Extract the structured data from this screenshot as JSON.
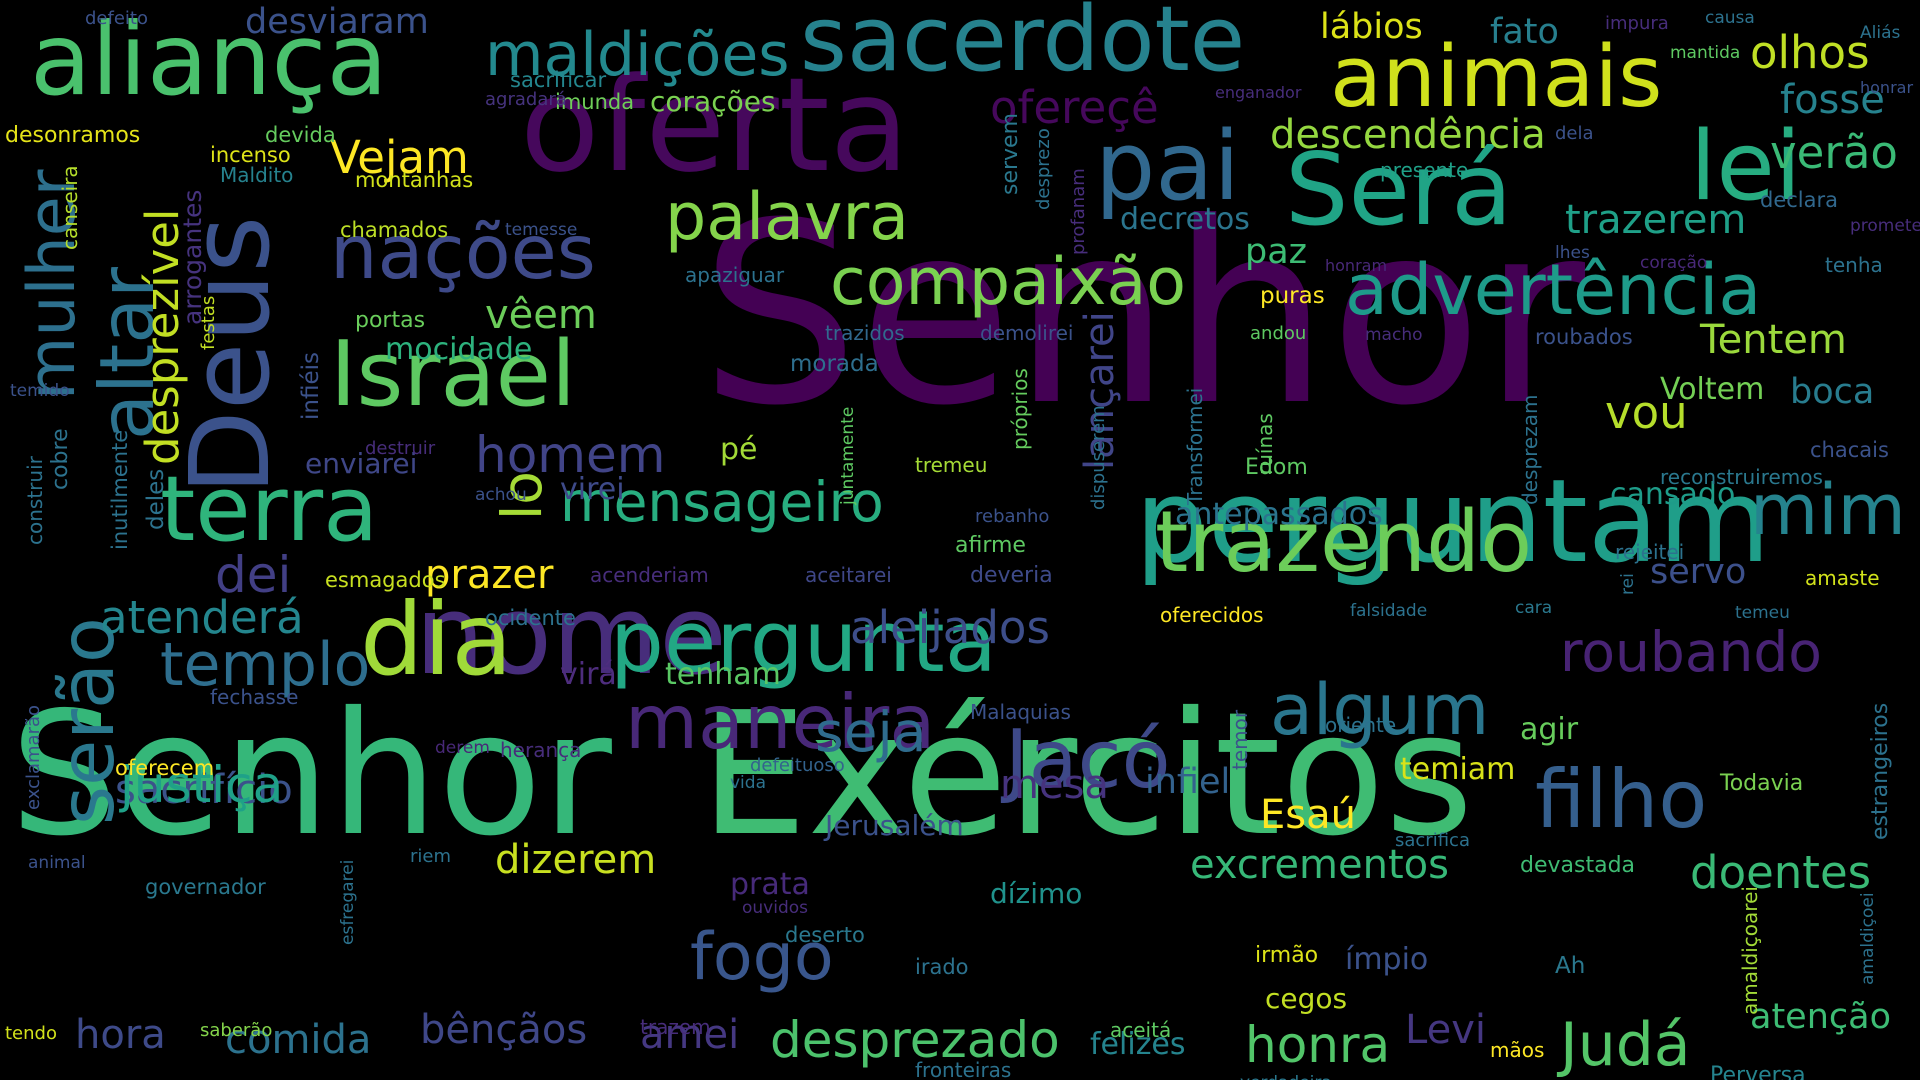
{
  "words": [
    {
      "text": "Senhor",
      "color": "#440154",
      "vertical": false
    },
    {
      "text": "Senhor",
      "color": "#35b779",
      "vertical": false
    },
    {
      "text": "Exércitos",
      "color": "#3fbc73",
      "vertical": false
    },
    {
      "text": "oferta",
      "color": "#46085c",
      "vertical": false
    },
    {
      "text": "nome",
      "color": "#472d7b",
      "vertical": false
    },
    {
      "text": "Deus",
      "color": "#3b528b",
      "vertical": true
    },
    {
      "text": "perguntam",
      "color": "#1f9e89",
      "vertical": false
    },
    {
      "text": "aliança",
      "color": "#4ac16d",
      "vertical": false
    },
    {
      "text": "sacerdote",
      "color": "#26828e",
      "vertical": false
    },
    {
      "text": "animais",
      "color": "#d0e11c",
      "vertical": false
    },
    {
      "text": "pai",
      "color": "#31688e",
      "vertical": false
    },
    {
      "text": "Será",
      "color": "#20a486",
      "vertical": false
    },
    {
      "text": "lei",
      "color": "#27ad81",
      "vertical": false
    },
    {
      "text": "dia",
      "color": "#a0da39",
      "vertical": false
    },
    {
      "text": "Israel",
      "color": "#5ec962",
      "vertical": false
    },
    {
      "text": "terra",
      "color": "#2fb47c",
      "vertical": false
    },
    {
      "text": "trazendo",
      "color": "#6ccd5a",
      "vertical": false
    },
    {
      "text": "pergunta",
      "color": "#22a884",
      "vertical": false
    },
    {
      "text": "filho",
      "color": "#355f8d",
      "vertical": false
    },
    {
      "text": "Jacó",
      "color": "#3e4989",
      "vertical": false
    },
    {
      "text": "maneira",
      "color": "#482878",
      "vertical": false
    },
    {
      "text": "nações",
      "color": "#3e4a89",
      "vertical": false
    },
    {
      "text": "palavra",
      "color": "#84d44b",
      "vertical": false
    },
    {
      "text": "altar",
      "color": "#2c728e",
      "vertical": true
    },
    {
      "text": "serão",
      "color": "#2a788e",
      "vertical": true
    },
    {
      "text": "mulher",
      "color": "#2d708e",
      "vertical": true
    },
    {
      "text": "desprezível",
      "color": "#c2df23",
      "vertical": true
    },
    {
      "text": "compaixão",
      "color": "#7ad151",
      "vertical": false
    },
    {
      "text": "advertência",
      "color": "#1e9b8a",
      "vertical": false
    },
    {
      "text": "maldições",
      "color": "#23898e",
      "vertical": false
    },
    {
      "text": "mim",
      "color": "#25838e",
      "vertical": false
    },
    {
      "text": "homem",
      "color": "#414487",
      "vertical": false
    },
    {
      "text": "vou",
      "color": "#b5de2b",
      "vertical": false
    },
    {
      "text": "Vejam",
      "color": "#fde725",
      "vertical": false
    },
    {
      "text": "templo",
      "color": "#2e6e8e",
      "vertical": false
    },
    {
      "text": "algum",
      "color": "#2a768e",
      "vertical": false
    },
    {
      "text": "roubando",
      "color": "#482374",
      "vertical": false
    },
    {
      "text": "seja",
      "color": "#2f6c8e",
      "vertical": false
    },
    {
      "text": "mensageiro",
      "color": "#28ae80",
      "vertical": false
    },
    {
      "text": "lo",
      "color": "#a5db36",
      "vertical": true
    },
    {
      "text": "lançarei",
      "color": "#404588",
      "vertical": true
    },
    {
      "text": "dei",
      "color": "#423f85",
      "vertical": false
    },
    {
      "text": "atenderá",
      "color": "#24868e",
      "vertical": false
    },
    {
      "text": "aleijados",
      "color": "#3d4e8a",
      "vertical": false
    },
    {
      "text": "prazer",
      "color": "#fde725",
      "vertical": false
    },
    {
      "text": "sacrifício",
      "color": "#3b528b",
      "vertical": false
    },
    {
      "text": "justiça",
      "color": "#1fa188",
      "vertical": false
    },
    {
      "text": "Esaú",
      "color": "#fde725",
      "vertical": false
    },
    {
      "text": "mesa",
      "color": "#46337e",
      "vertical": false
    },
    {
      "text": "infiel",
      "color": "#33628d",
      "vertical": false
    },
    {
      "text": "temiam",
      "color": "#d8e219",
      "vertical": false
    },
    {
      "text": "Jerusalém",
      "color": "#3b528b",
      "vertical": false
    },
    {
      "text": "dizerem",
      "color": "#c8e020",
      "vertical": false
    },
    {
      "text": "excrementos",
      "color": "#37b878",
      "vertical": false
    },
    {
      "text": "doentes",
      "color": "#3aba76",
      "vertical": false
    },
    {
      "text": "fogo",
      "color": "#39568c",
      "vertical": false
    },
    {
      "text": "desprezado",
      "color": "#4cc26c",
      "vertical": false
    },
    {
      "text": "honra",
      "color": "#52c569",
      "vertical": false
    },
    {
      "text": "Judá",
      "color": "#54c568",
      "vertical": false
    },
    {
      "text": "Levi",
      "color": "#453781",
      "vertical": false
    },
    {
      "text": "hora",
      "color": "#3e4a89",
      "vertical": false
    },
    {
      "text": "comida",
      "color": "#2c728e",
      "vertical": false
    },
    {
      "text": "bênçãos",
      "color": "#3f4788",
      "vertical": false
    },
    {
      "text": "amei",
      "color": "#453882",
      "vertical": false
    },
    {
      "text": "felizes",
      "color": "#25848e",
      "vertical": false
    },
    {
      "text": "atenção",
      "color": "#3dbc74",
      "vertical": false
    },
    {
      "text": "olhos",
      "color": "#c0df25",
      "vertical": false
    },
    {
      "text": "fosse",
      "color": "#26828e",
      "vertical": false
    },
    {
      "text": "verão",
      "color": "#3aba76",
      "vertical": false
    },
    {
      "text": "lábios",
      "color": "#dde318",
      "vertical": false
    },
    {
      "text": "fato",
      "color": "#277f8e",
      "vertical": false
    },
    {
      "text": "descendência",
      "color": "#95d840",
      "vertical": false
    },
    {
      "text": "trazerem",
      "color": "#1fa088",
      "vertical": false
    },
    {
      "text": "Tentem",
      "color": "#9bd93c",
      "vertical": false
    },
    {
      "text": "decretos",
      "color": "#2b758e",
      "vertical": false
    },
    {
      "text": "ofereçê",
      "color": "#46085c",
      "vertical": false
    },
    {
      "text": "desviaram",
      "color": "#3b528b",
      "vertical": false
    },
    {
      "text": "boca",
      "color": "#287c8e",
      "vertical": false
    },
    {
      "text": "Voltem",
      "color": "#74d055",
      "vertical": false
    },
    {
      "text": "servo",
      "color": "#3c508b",
      "vertical": false
    },
    {
      "text": "cansado",
      "color": "#1e9c89",
      "vertical": false
    },
    {
      "text": "antepassados",
      "color": "#2b748e",
      "vertical": false
    },
    {
      "text": "vêem",
      "color": "#6ccd5a",
      "vertical": false
    },
    {
      "text": "paz",
      "color": "#3dbc74",
      "vertical": false
    },
    {
      "text": "puras",
      "color": "#fde725",
      "vertical": false
    },
    {
      "text": "mocidade",
      "color": "#2db27d",
      "vertical": false
    },
    {
      "text": "enviarei",
      "color": "#3f4788",
      "vertical": false
    },
    {
      "text": "virei",
      "color": "#3e4a89",
      "vertical": false
    },
    {
      "text": "tenham",
      "color": "#5ac864",
      "vertical": false
    },
    {
      "text": "virá",
      "color": "#4e2d7e",
      "vertical": false
    },
    {
      "text": "agir",
      "color": "#67cc5c",
      "vertical": false
    },
    {
      "text": "dízimo",
      "color": "#20928c",
      "vertical": false
    },
    {
      "text": "prata",
      "color": "#472a7a",
      "vertical": false
    },
    {
      "text": "ímpio",
      "color": "#3b528b",
      "vertical": false
    },
    {
      "text": "cegos",
      "color": "#c2df23",
      "vertical": false
    },
    {
      "text": "irmão",
      "color": "#dde318",
      "vertical": false
    },
    {
      "text": "Ah",
      "color": "#2a788e",
      "vertical": false
    },
    {
      "text": "mãos",
      "color": "#fde725",
      "vertical": false
    },
    {
      "text": "Perversa",
      "color": "#25848e",
      "vertical": false
    },
    {
      "text": "Todavia",
      "color": "#7ad151",
      "vertical": false
    },
    {
      "text": "devastada",
      "color": "#3fbc73",
      "vertical": false
    },
    {
      "text": "sacrifica",
      "color": "#2c728e",
      "vertical": false
    },
    {
      "text": "pé",
      "color": "#a2da37",
      "vertical": false
    },
    {
      "text": "morada",
      "color": "#2e6f8e",
      "vertical": false
    },
    {
      "text": "portas",
      "color": "#69cd5b",
      "vertical": false
    },
    {
      "text": "chamados",
      "color": "#bddf26",
      "vertical": false
    },
    {
      "text": "montanhas",
      "color": "#d2e21b",
      "vertical": false
    },
    {
      "text": "incenso",
      "color": "#dde318",
      "vertical": false
    },
    {
      "text": "devida",
      "color": "#65cb5e",
      "vertical": false
    },
    {
      "text": "corações",
      "color": "#7ad151",
      "vertical": false
    },
    {
      "text": "imunda",
      "color": "#6ece58",
      "vertical": false
    },
    {
      "text": "sacrificar",
      "color": "#24868e",
      "vertical": false
    },
    {
      "text": "agradará",
      "color": "#46337e",
      "vertical": false
    },
    {
      "text": "desonramos",
      "color": "#e5e419",
      "vertical": false
    },
    {
      "text": "Maldito",
      "color": "#26828e",
      "vertical": false
    },
    {
      "text": "defeito",
      "color": "#3b528b",
      "vertical": false
    },
    {
      "text": "esmagados",
      "color": "#c8e020",
      "vertical": false
    },
    {
      "text": "acenderiam",
      "color": "#472d7b",
      "vertical": false
    },
    {
      "text": "aceitarei",
      "color": "#3f4788",
      "vertical": false
    },
    {
      "text": "deveria",
      "color": "#3e4a89",
      "vertical": false
    },
    {
      "text": "afirme",
      "color": "#5ec962",
      "vertical": false
    },
    {
      "text": "tremeu",
      "color": "#a5db36",
      "vertical": false
    },
    {
      "text": "ocidente",
      "color": "#2c728e",
      "vertical": false
    },
    {
      "text": "fechasse",
      "color": "#3b528b",
      "vertical": false
    },
    {
      "text": "oferecem",
      "color": "#fde725",
      "vertical": false
    },
    {
      "text": "herança",
      "color": "#472d7b",
      "vertical": false
    },
    {
      "text": "derem",
      "color": "#482878",
      "vertical": false
    },
    {
      "text": "vida",
      "color": "#2c728e",
      "vertical": false
    },
    {
      "text": "defeituoso",
      "color": "#33638d",
      "vertical": false
    },
    {
      "text": "Malaquias",
      "color": "#3b528b",
      "vertical": false
    },
    {
      "text": "oriente",
      "color": "#2c728e",
      "vertical": false
    },
    {
      "text": "temor",
      "color": "#3b528b",
      "vertical": true
    },
    {
      "text": "governador",
      "color": "#2a788e",
      "vertical": false
    },
    {
      "text": "riem",
      "color": "#2c728e",
      "vertical": false
    },
    {
      "text": "animal",
      "color": "#3b528b",
      "vertical": false
    },
    {
      "text": "ouvidos",
      "color": "#472d7b",
      "vertical": false
    },
    {
      "text": "deserto",
      "color": "#2a788e",
      "vertical": false
    },
    {
      "text": "irado",
      "color": "#2c728e",
      "vertical": false
    },
    {
      "text": "aceitá",
      "color": "#5ec962",
      "vertical": false
    },
    {
      "text": "trazem",
      "color": "#472d7b",
      "vertical": false
    },
    {
      "text": "fronteiras",
      "color": "#2c728e",
      "vertical": false
    },
    {
      "text": "saberão",
      "color": "#84d44b",
      "vertical": false
    },
    {
      "text": "tendo",
      "color": "#d2e21b",
      "vertical": false
    },
    {
      "text": "verdadeira",
      "color": "#2a788e",
      "vertical": false
    },
    {
      "text": "impura",
      "color": "#472d7b",
      "vertical": false
    },
    {
      "text": "causa",
      "color": "#2c728e",
      "vertical": false
    },
    {
      "text": "mantida",
      "color": "#5ec962",
      "vertical": false
    },
    {
      "text": "Aliás",
      "color": "#2c728e",
      "vertical": false
    },
    {
      "text": "honrar",
      "color": "#3b528b",
      "vertical": false
    },
    {
      "text": "enganador",
      "color": "#472d7b",
      "vertical": false
    },
    {
      "text": "dela",
      "color": "#3b528b",
      "vertical": false
    },
    {
      "text": "presente",
      "color": "#1fa088",
      "vertical": false
    },
    {
      "text": "declara",
      "color": "#31688e",
      "vertical": false
    },
    {
      "text": "promete",
      "color": "#472d7b",
      "vertical": false
    },
    {
      "text": "tenha",
      "color": "#2c728e",
      "vertical": false
    },
    {
      "text": "coração",
      "color": "#482878",
      "vertical": false
    },
    {
      "text": "lhes",
      "color": "#3b528b",
      "vertical": false
    },
    {
      "text": "honram",
      "color": "#482878",
      "vertical": false
    },
    {
      "text": "macho",
      "color": "#472d7b",
      "vertical": false
    },
    {
      "text": "roubados",
      "color": "#3b528b",
      "vertical": false
    },
    {
      "text": "andou",
      "color": "#5ec962",
      "vertical": false
    },
    {
      "text": "chacais",
      "color": "#3b528b",
      "vertical": false
    },
    {
      "text": "reconstruiremos",
      "color": "#2a788e",
      "vertical": false
    },
    {
      "text": "rejeitei",
      "color": "#2c728e",
      "vertical": false
    },
    {
      "text": "amaste",
      "color": "#d2e21b",
      "vertical": false
    },
    {
      "text": "temeu",
      "color": "#2c728e",
      "vertical": false
    },
    {
      "text": "cara",
      "color": "#2a788e",
      "vertical": false
    },
    {
      "text": "falsidade",
      "color": "#2c728e",
      "vertical": false
    },
    {
      "text": "oferecidos",
      "color": "#fde725",
      "vertical": false
    },
    {
      "text": "Edom",
      "color": "#5ec962",
      "vertical": false
    },
    {
      "text": "rebanho",
      "color": "#3b528b",
      "vertical": false
    },
    {
      "text": "achou",
      "color": "#3b528b",
      "vertical": false
    },
    {
      "text": "destruir",
      "color": "#472d7b",
      "vertical": false
    },
    {
      "text": "temido",
      "color": "#3b528b",
      "vertical": false
    },
    {
      "text": "temesse",
      "color": "#3b528b",
      "vertical": false
    },
    {
      "text": "apaziguar",
      "color": "#2c728e",
      "vertical": false
    },
    {
      "text": "trazidos",
      "color": "#31688e",
      "vertical": false
    },
    {
      "text": "demolirei",
      "color": "#3b528b",
      "vertical": false
    },
    {
      "text": "servem",
      "color": "#2a788e",
      "vertical": true
    },
    {
      "text": "desprezo",
      "color": "#2c728e",
      "vertical": true
    },
    {
      "text": "profanam",
      "color": "#472d7b",
      "vertical": true
    },
    {
      "text": "próprios",
      "color": "#65cb5e",
      "vertical": true
    },
    {
      "text": "juntamente",
      "color": "#5ec962",
      "vertical": true
    },
    {
      "text": "Transformei",
      "color": "#2c728e",
      "vertical": true
    },
    {
      "text": "dispuserem",
      "color": "#2c728e",
      "vertical": true
    },
    {
      "text": "ruínas",
      "color": "#5ec962",
      "vertical": true
    },
    {
      "text": "desprezam",
      "color": "#2c728e",
      "vertical": true
    },
    {
      "text": "arrogantes",
      "color": "#46337e",
      "vertical": true
    },
    {
      "text": "festas",
      "color": "#c2df23",
      "vertical": true
    },
    {
      "text": "canseira",
      "color": "#b5de2b",
      "vertical": true
    },
    {
      "text": "infiéis",
      "color": "#3b528b",
      "vertical": true
    },
    {
      "text": "cobre",
      "color": "#2c728e",
      "vertical": true
    },
    {
      "text": "inutilmente",
      "color": "#2c728e",
      "vertical": true
    },
    {
      "text": "deles",
      "color": "#2c728e",
      "vertical": true
    },
    {
      "text": "construir",
      "color": "#2c728e",
      "vertical": true
    },
    {
      "text": "exclamarão",
      "color": "#3b528b",
      "vertical": true
    },
    {
      "text": "esfregarei",
      "color": "#2c728e",
      "vertical": true
    },
    {
      "text": "rei",
      "color": "#2c728e",
      "vertical": true
    },
    {
      "text": "estrangeiros",
      "color": "#2c728e",
      "vertical": true
    },
    {
      "text": "amaldiçoarei",
      "color": "#a2da37",
      "vertical": true
    },
    {
      "text": "amaldiçoei",
      "color": "#2c728e",
      "vertical": true
    }
  ]
}
